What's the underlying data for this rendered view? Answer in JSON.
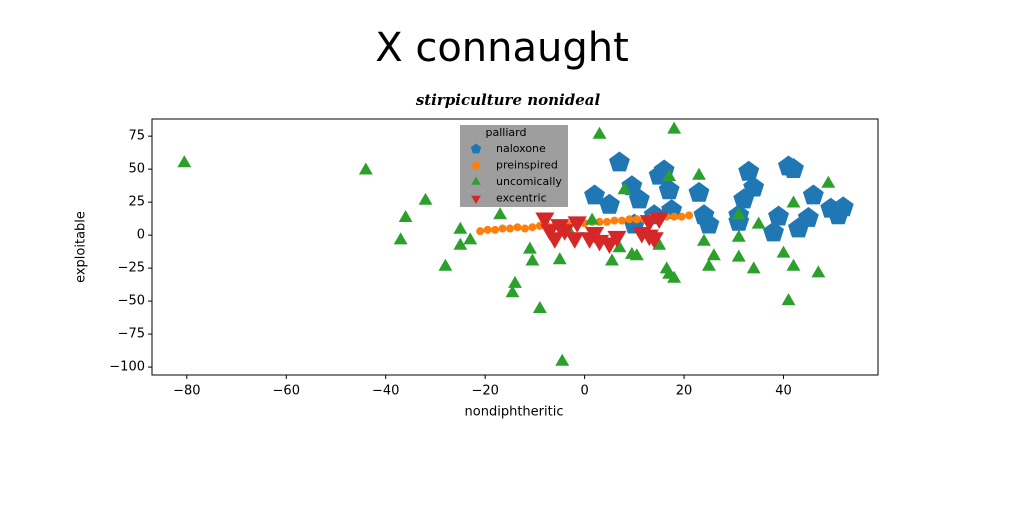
{
  "chart_data": {
    "type": "scatter",
    "title": "X connaught",
    "subtitle": "stirpiculture nonideal",
    "xlabel": "nondiphtheritic",
    "ylabel": "exploitable",
    "legend_title": "palliard",
    "legend": "upper center",
    "xlim": [
      -87,
      59
    ],
    "ylim": [
      -106,
      88
    ],
    "xticks": [
      {
        "value": -80,
        "label": "−80"
      },
      {
        "value": -60,
        "label": "−60"
      },
      {
        "value": -40,
        "label": "−40"
      },
      {
        "value": -20,
        "label": "−20"
      },
      0,
      20,
      40
    ],
    "yticks": [
      {
        "value": -100,
        "label": "−100"
      },
      {
        "value": -75,
        "label": "−75"
      },
      {
        "value": -50,
        "label": "−50"
      },
      {
        "value": -25,
        "label": "−25"
      },
      0,
      25,
      50,
      75
    ],
    "series": [
      {
        "name": "naloxone",
        "color": "#1f77b4",
        "marker": "pentagon",
        "x": [
          7,
          2,
          5,
          9.5,
          11,
          15,
          16,
          17,
          17.5,
          23,
          24,
          25,
          33,
          34,
          32,
          31,
          31,
          38,
          39,
          41,
          42,
          45,
          43,
          46,
          49.5,
          52,
          51,
          10,
          14
        ],
        "y": [
          55,
          30,
          23,
          37,
          27,
          45,
          49,
          34,
          19,
          32,
          15,
          8,
          48,
          36,
          27,
          15,
          10,
          2,
          14,
          52,
          50,
          13,
          5,
          30,
          20,
          21,
          15,
          8,
          15
        ]
      },
      {
        "name": "preinspired",
        "color": "#ff7f0e",
        "marker": "circle",
        "x": [
          -21,
          -19.5,
          -18,
          -16.5,
          -15,
          -13.5,
          -12,
          -10.5,
          -9,
          -7.5,
          -6,
          -4.5,
          -3,
          -1.5,
          0,
          1.5,
          3,
          4.5,
          6,
          7.5,
          9,
          10.5,
          12,
          13.5,
          15,
          16.5,
          18,
          19.5,
          21
        ],
        "y": [
          3,
          4,
          4,
          5,
          5,
          6,
          5,
          6,
          7,
          7,
          7,
          8,
          8,
          9,
          9,
          10,
          10,
          10,
          11,
          11,
          12,
          12,
          12,
          13,
          13,
          14,
          14,
          14,
          15
        ]
      },
      {
        "name": "uncomically",
        "color": "#2ca02c",
        "marker": "triangle",
        "x": [
          -80.5,
          -44,
          -36,
          -37,
          -32,
          -28,
          -25,
          -25,
          -23,
          -17,
          -14.5,
          -14,
          -11,
          -10.5,
          -9,
          -5,
          -4.5,
          3,
          18,
          17,
          23,
          24,
          26,
          25,
          31,
          31,
          34,
          31,
          35,
          40,
          42,
          42,
          41,
          49,
          47,
          15,
          16.5,
          17,
          18,
          9.5,
          10.5,
          5.5,
          7,
          1.5,
          8,
          -3
        ],
        "y": [
          54.5,
          49,
          13,
          -4,
          26,
          -24,
          4,
          -8,
          -4,
          15,
          -44,
          -37,
          -11,
          -20,
          -56,
          -19,
          -96,
          76,
          80,
          44,
          45,
          -5,
          -16,
          -24,
          -2,
          -17,
          -26,
          15,
          8,
          -14,
          24,
          -24,
          -50,
          39,
          -29,
          -8,
          -26,
          -30,
          -33,
          -15,
          -16,
          -20,
          -10,
          11,
          34,
          2
        ]
      },
      {
        "name": "excentric",
        "color": "#d62728",
        "marker": "triangle-down",
        "x": [
          -8,
          -7,
          -5,
          -1.5,
          -6,
          -2,
          1,
          3,
          2,
          6.5,
          5,
          13,
          15,
          13,
          14,
          11.5,
          -4
        ],
        "y": [
          13,
          4,
          8,
          10,
          -2,
          -2,
          -2,
          -4,
          2,
          -1,
          -6,
          11,
          13,
          0,
          -2,
          2,
          4
        ]
      }
    ]
  }
}
